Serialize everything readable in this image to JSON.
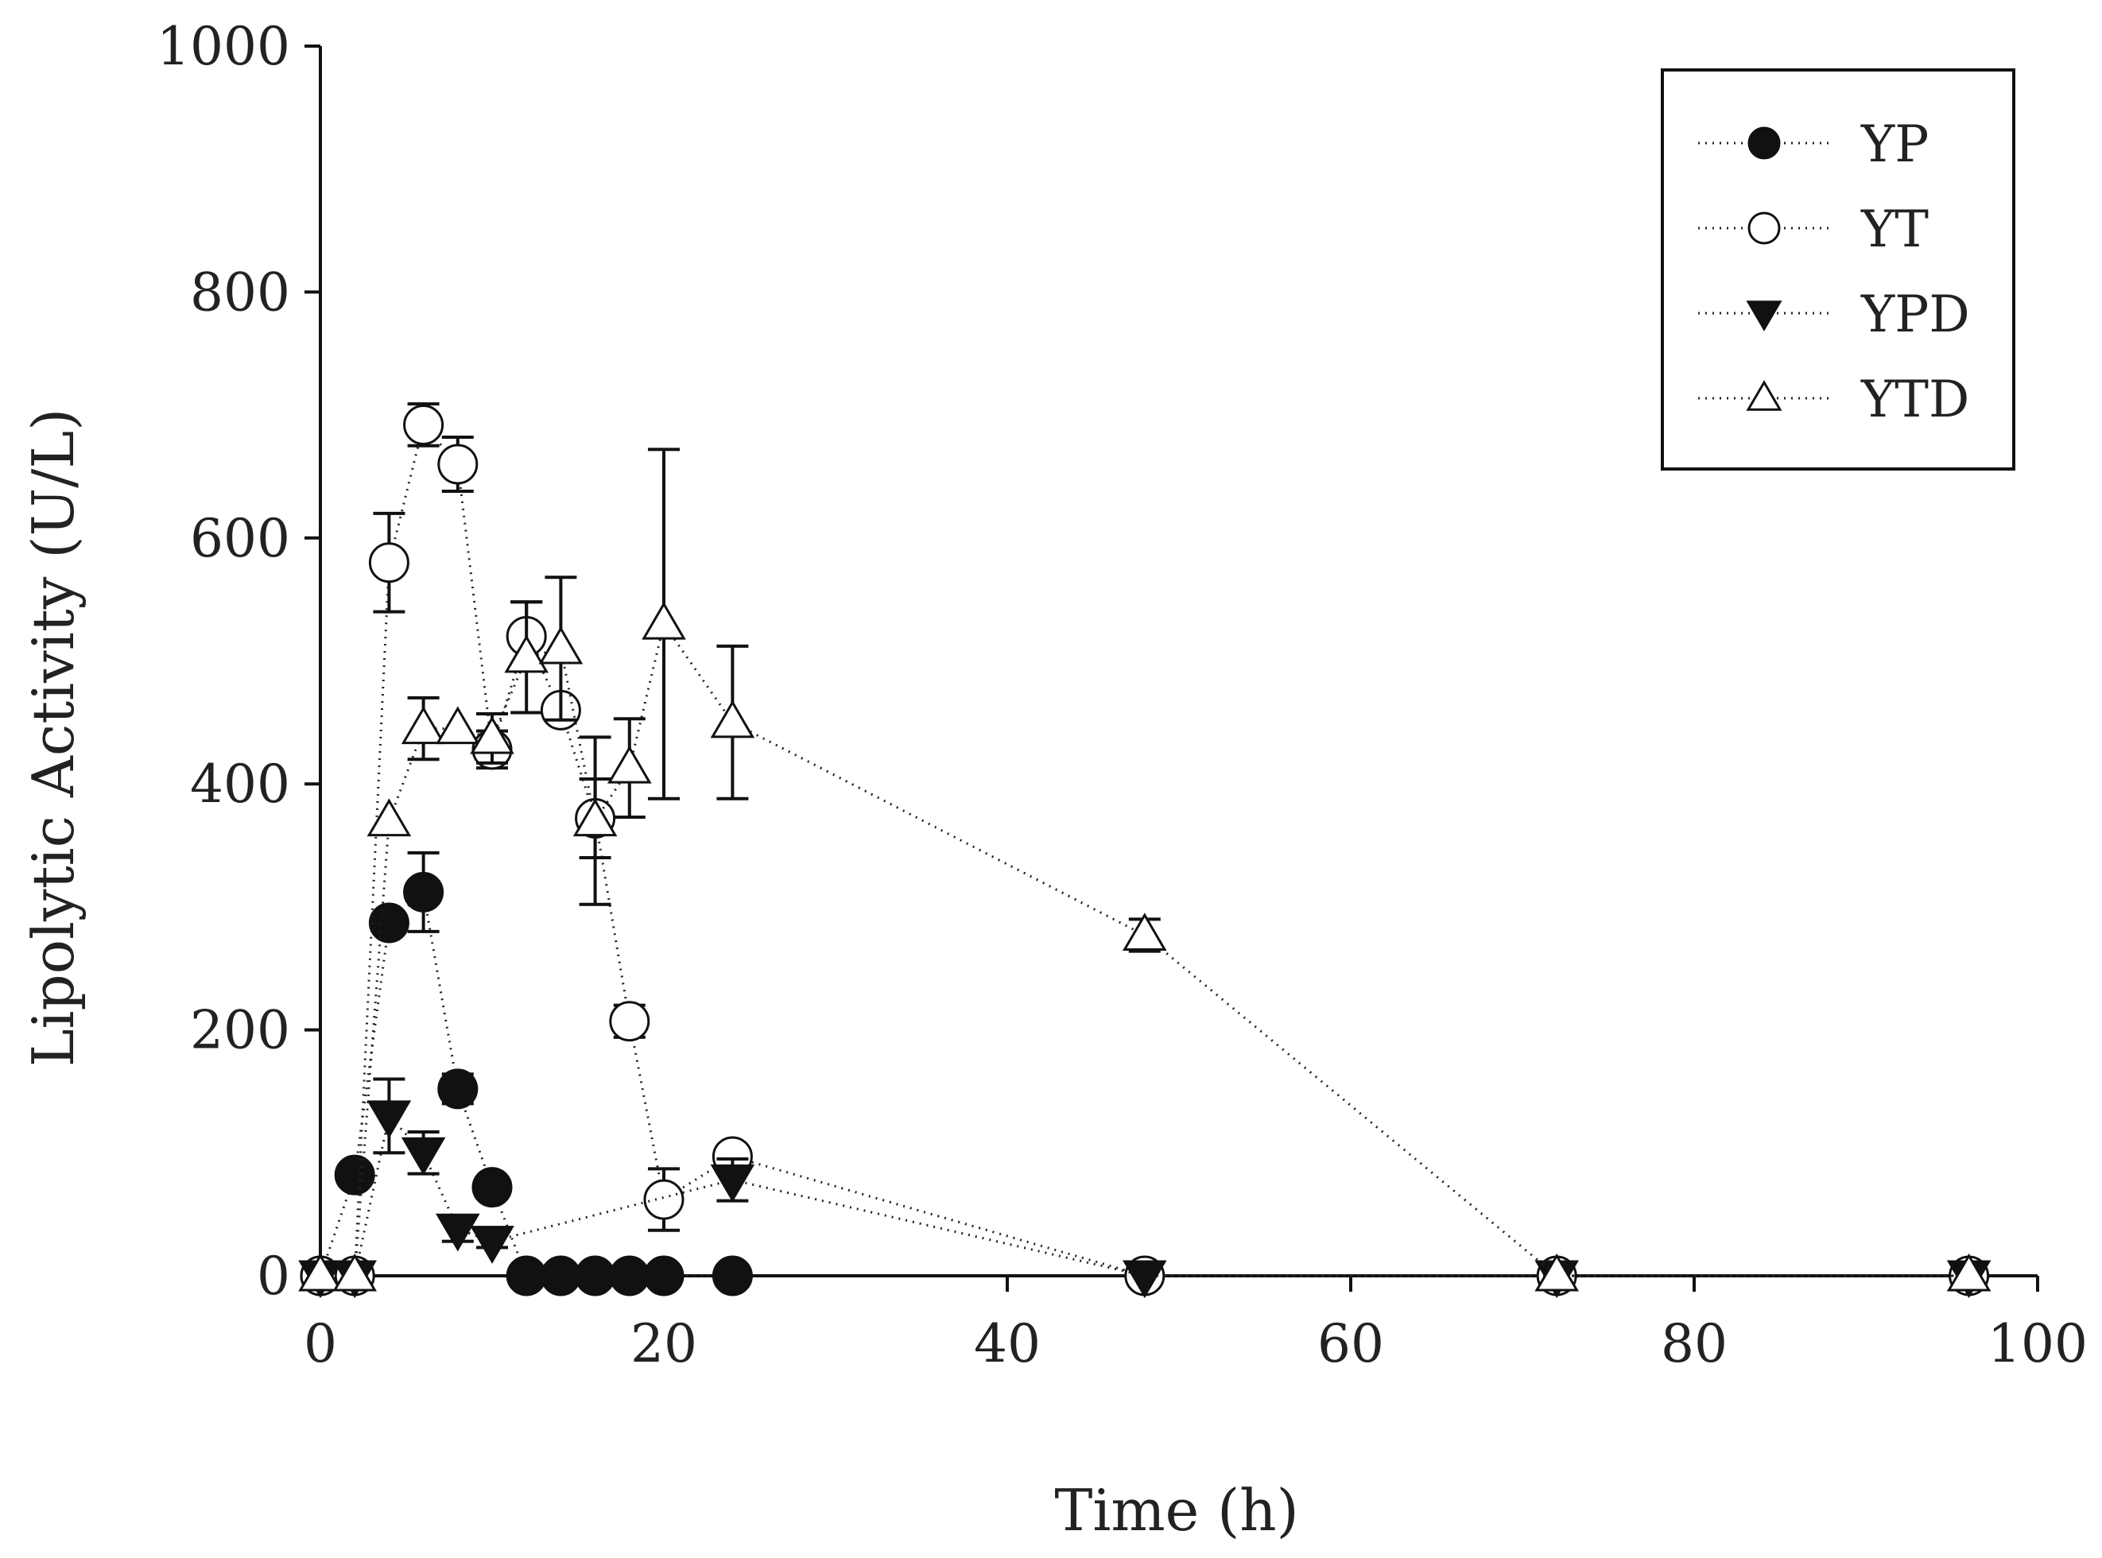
{
  "chart_data": {
    "type": "scatter",
    "title": "",
    "xlabel": "Time (h)",
    "ylabel": "Lipolytic Activity (U/L)",
    "xlim": [
      0,
      100
    ],
    "ylim": [
      0,
      1000
    ],
    "xticks": [
      0,
      20,
      40,
      60,
      80,
      100
    ],
    "yticks": [
      0,
      200,
      400,
      600,
      800,
      1000
    ],
    "grid": false,
    "legend_position": "top-right",
    "series": [
      {
        "name": "YP",
        "marker": "circle-filled",
        "points": [
          {
            "x": 0,
            "y": 0,
            "err": 0
          },
          {
            "x": 2,
            "y": 82,
            "err": 0
          },
          {
            "x": 4,
            "y": 287,
            "err": 8
          },
          {
            "x": 6,
            "y": 312,
            "err": 32
          },
          {
            "x": 8,
            "y": 152,
            "err": 12
          },
          {
            "x": 10,
            "y": 72,
            "err": 0
          },
          {
            "x": 12,
            "y": 0,
            "err": 0
          },
          {
            "x": 14,
            "y": 0,
            "err": 0
          },
          {
            "x": 16,
            "y": 0,
            "err": 0
          },
          {
            "x": 18,
            "y": 0,
            "err": 0
          },
          {
            "x": 20,
            "y": 0,
            "err": 0
          },
          {
            "x": 24,
            "y": 0,
            "err": 0
          }
        ]
      },
      {
        "name": "YT",
        "marker": "circle-open",
        "points": [
          {
            "x": 0,
            "y": 0,
            "err": 0
          },
          {
            "x": 2,
            "y": 0,
            "err": 0
          },
          {
            "x": 4,
            "y": 580,
            "err": 40
          },
          {
            "x": 6,
            "y": 692,
            "err": 17
          },
          {
            "x": 8,
            "y": 660,
            "err": 22
          },
          {
            "x": 10,
            "y": 428,
            "err": 15
          },
          {
            "x": 12,
            "y": 520,
            "err": 28
          },
          {
            "x": 14,
            "y": 460,
            "err": 5
          },
          {
            "x": 16,
            "y": 372,
            "err": 32
          },
          {
            "x": 18,
            "y": 207,
            "err": 13
          },
          {
            "x": 20,
            "y": 62,
            "err": 25
          },
          {
            "x": 24,
            "y": 97,
            "err": 0
          },
          {
            "x": 48,
            "y": 0,
            "err": 0
          },
          {
            "x": 72,
            "y": 0,
            "err": 0
          },
          {
            "x": 96,
            "y": 0,
            "err": 0
          }
        ]
      },
      {
        "name": "YPD",
        "marker": "triangle-down-filled",
        "points": [
          {
            "x": 0,
            "y": 0,
            "err": 0
          },
          {
            "x": 2,
            "y": 0,
            "err": 0
          },
          {
            "x": 4,
            "y": 130,
            "err": 30
          },
          {
            "x": 6,
            "y": 100,
            "err": 17
          },
          {
            "x": 8,
            "y": 38,
            "err": 10
          },
          {
            "x": 10,
            "y": 28,
            "err": 5
          },
          {
            "x": 24,
            "y": 78,
            "err": 17
          },
          {
            "x": 48,
            "y": 0,
            "err": 0
          },
          {
            "x": 72,
            "y": 0,
            "err": 0
          },
          {
            "x": 96,
            "y": 0,
            "err": 0
          }
        ]
      },
      {
        "name": "YTD",
        "marker": "triangle-up-open",
        "points": [
          {
            "x": 0,
            "y": 0,
            "err": 0
          },
          {
            "x": 2,
            "y": 0,
            "err": 0
          },
          {
            "x": 4,
            "y": 370,
            "err": 0
          },
          {
            "x": 6,
            "y": 445,
            "err": 25
          },
          {
            "x": 8,
            "y": 445,
            "err": 0
          },
          {
            "x": 10,
            "y": 437,
            "err": 20
          },
          {
            "x": 12,
            "y": 503,
            "err": 45
          },
          {
            "x": 14,
            "y": 510,
            "err": 58
          },
          {
            "x": 16,
            "y": 370,
            "err": 68
          },
          {
            "x": 18,
            "y": 413,
            "err": 40
          },
          {
            "x": 20,
            "y": 530,
            "err": 142
          },
          {
            "x": 24,
            "y": 450,
            "err": 62
          },
          {
            "x": 48,
            "y": 277,
            "err": 13
          },
          {
            "x": 72,
            "y": 0,
            "err": 0
          },
          {
            "x": 96,
            "y": 0,
            "err": 0
          }
        ]
      }
    ]
  }
}
